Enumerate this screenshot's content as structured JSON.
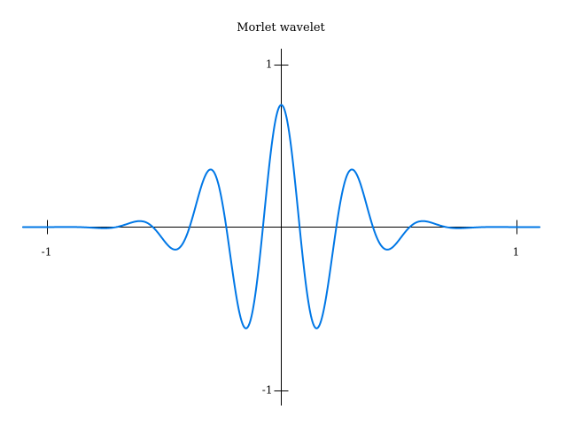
{
  "chart_data": {
    "type": "line",
    "title": "Morlet wavelet",
    "xlabel": "",
    "ylabel": "",
    "xlim": [
      -1.1,
      1.1
    ],
    "ylim": [
      -1.1,
      1.1
    ],
    "grid": false,
    "x_ticks": [
      -1,
      1
    ],
    "x_tick_labels": [
      "-1",
      "1"
    ],
    "y_ticks": [
      1,
      -1
    ],
    "y_tick_labels": [
      "1",
      "-1"
    ],
    "series": [
      {
        "color": "#0077e6",
        "function": "exp(-x^2/(2*0.25^2)) * cos(2*pi*3.2*x) * 0.75",
        "x_start": -1.1,
        "x_end": 1.1,
        "samples": 801,
        "envelope_sigma": 0.25,
        "frequency": 3.2,
        "amplitude": 0.75
      }
    ]
  }
}
